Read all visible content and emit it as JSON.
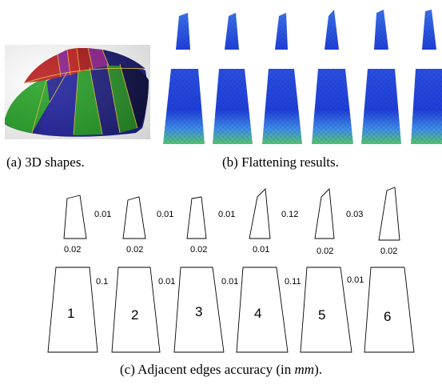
{
  "figure": {
    "captions": {
      "a": "(a)  3D shapes.",
      "b": "(b)  Flattening results.",
      "c_prefix": "(c)  Adjacent edges accuracy (in ",
      "c_unit": "mm",
      "c_suffix": ")."
    },
    "panel_c": {
      "pieces": [
        {
          "number": "1",
          "top_side": "0.01",
          "middle": "0.02",
          "bottom_side": "0.1"
        },
        {
          "number": "2",
          "top_side": "0.01",
          "middle": "0.02",
          "bottom_side": "0.01"
        },
        {
          "number": "3",
          "top_side": "0.01",
          "middle": "0.02",
          "bottom_side": "0.01"
        },
        {
          "number": "4",
          "top_side": "0.12",
          "middle": "0.01",
          "bottom_side": "0.11"
        },
        {
          "number": "5",
          "top_side": "0.03",
          "middle": "0.02",
          "bottom_side": "0.01"
        },
        {
          "number": "6",
          "top_side": "",
          "middle": "0.02",
          "bottom_side": ""
        }
      ]
    },
    "colors": {
      "mesh_blue": "#1f3fd8",
      "mesh_cyan": "#3fa8e8",
      "mesh_green": "#46c864",
      "shape_red": "#b81818",
      "shape_purple": "#8a1a8a",
      "shape_green": "#1a8a1a",
      "shape_blue": "#1a1a7a",
      "edge_yellow": "#e0c040"
    }
  }
}
